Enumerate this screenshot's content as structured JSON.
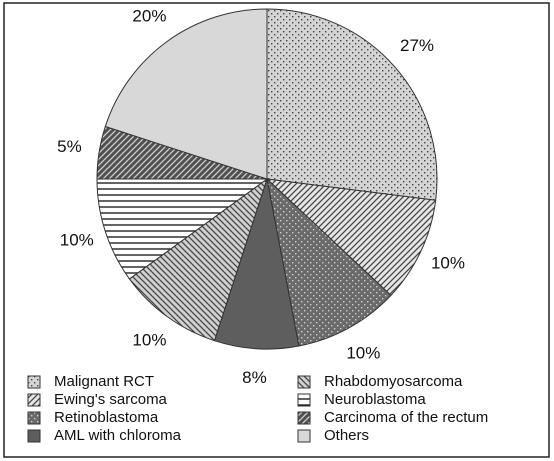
{
  "chart_data": {
    "type": "pie",
    "categories": [
      "Malignant RCT",
      "Ewing's sarcoma",
      "Retinoblastoma",
      "AML with chloroma",
      "Rhabdomyosarcoma",
      "Neuroblastoma",
      "Carcinoma of the rectum",
      "Others"
    ],
    "values": [
      27,
      10,
      10,
      8,
      10,
      10,
      5,
      20
    ],
    "value_labels": [
      "27%",
      "10%",
      "10%",
      "8%",
      "10%",
      "10%",
      "5%",
      "20%"
    ],
    "colors": [
      "#d4d4d4",
      "#e6e6e6",
      "#6a6a6a",
      "#5e5e5e",
      "#d0d0d0",
      "#ffffff",
      "#505050",
      "#d8d8d8"
    ],
    "patterns": [
      "dots",
      "forward",
      "dots",
      "solid",
      "back",
      "horizontal",
      "forward",
      "solid"
    ],
    "legend": "bottom"
  }
}
